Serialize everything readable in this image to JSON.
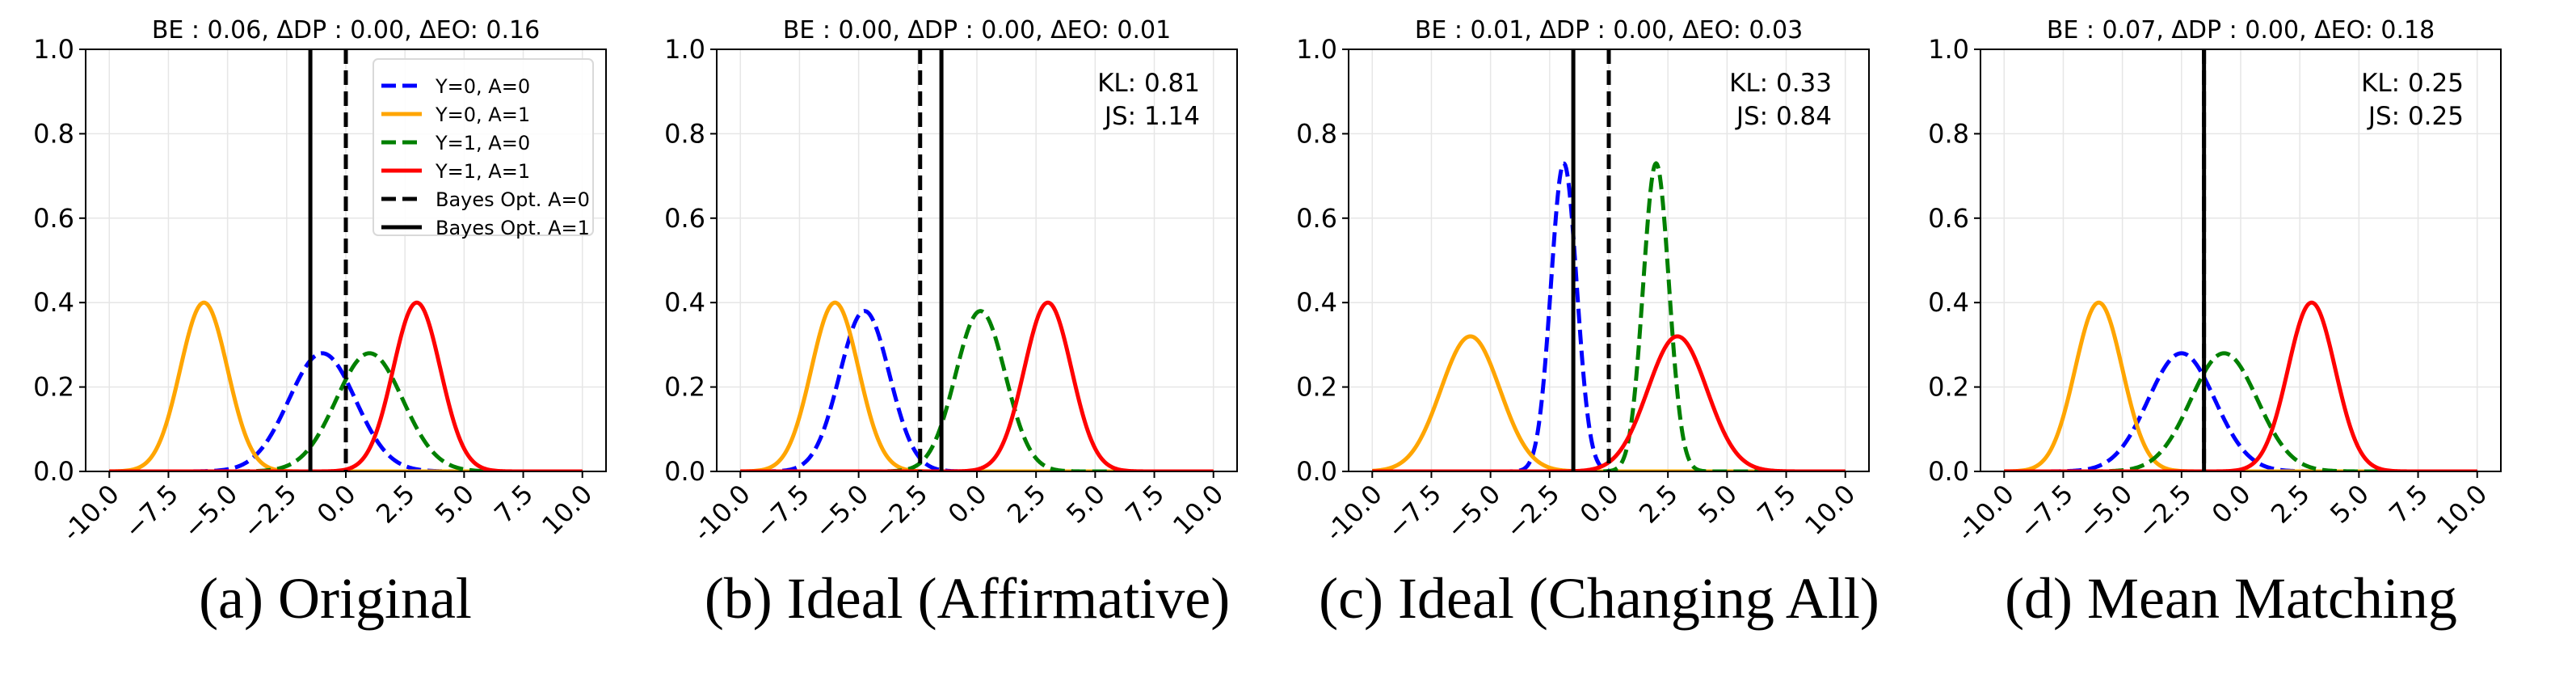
{
  "figure": {
    "colors": {
      "y0_a0": "#0000ff",
      "y0_a1": "#ffa500",
      "y1_a0": "#008000",
      "y1_a1": "#ff0000",
      "bayes": "#000000",
      "grid": "#e6e6e6"
    }
  },
  "chart_data": [
    {
      "type": "line",
      "panel": "a",
      "title": "BE : 0.06, ΔDP : 0.00, ΔEO: 0.16",
      "caption": "(a) Original",
      "xlabel": "",
      "ylabel": "",
      "xlim": [
        -11,
        11
      ],
      "ylim": [
        0,
        1.0
      ],
      "xticks": [
        -10.0,
        -7.5,
        -5.0,
        -2.5,
        0.0,
        2.5,
        5.0,
        7.5,
        10.0
      ],
      "xtick_labels": [
        "-10.0",
        "−7.5",
        "−5.0",
        "−2.5",
        "0.0",
        "2.5",
        "5.0",
        "7.5",
        "10.0"
      ],
      "yticks": [
        0.0,
        0.2,
        0.4,
        0.6,
        0.8,
        1.0
      ],
      "ytick_labels": [
        "0.0",
        "0.2",
        "0.4",
        "0.6",
        "0.8",
        "1.0"
      ],
      "grid": true,
      "legend": {
        "placement": "top-right",
        "entries": [
          {
            "label": "Y=0, A=0",
            "series": "y0_a0",
            "style": "dashed"
          },
          {
            "label": "Y=0, A=1",
            "series": "y0_a1",
            "style": "solid"
          },
          {
            "label": "Y=1, A=0",
            "series": "y1_a0",
            "style": "dashed"
          },
          {
            "label": "Y=1, A=1",
            "series": "y1_a1",
            "style": "solid"
          },
          {
            "label": "Bayes Opt. A=0",
            "series": "bayes_a0",
            "style": "dashed"
          },
          {
            "label": "Bayes Opt. A=1",
            "series": "bayes_a1",
            "style": "solid"
          }
        ]
      },
      "annotation": null,
      "series": [
        {
          "name": "Y=0, A=0",
          "key": "y0_a0",
          "kind": "gaussian",
          "mean": -1.0,
          "std": 1.41,
          "peak": 0.28,
          "style": "dashed"
        },
        {
          "name": "Y=0, A=1",
          "key": "y0_a1",
          "kind": "gaussian",
          "mean": -6.0,
          "std": 1.0,
          "peak": 0.4,
          "style": "solid"
        },
        {
          "name": "Y=1, A=0",
          "key": "y1_a0",
          "kind": "gaussian",
          "mean": 1.0,
          "std": 1.41,
          "peak": 0.28,
          "style": "dashed"
        },
        {
          "name": "Y=1, A=1",
          "key": "y1_a1",
          "kind": "gaussian",
          "mean": 3.0,
          "std": 1.0,
          "peak": 0.4,
          "style": "solid"
        }
      ],
      "vlines": [
        {
          "name": "Bayes Opt. A=0",
          "x": 0.0,
          "style": "dashed"
        },
        {
          "name": "Bayes Opt. A=1",
          "x": -1.5,
          "style": "solid"
        }
      ]
    },
    {
      "type": "line",
      "panel": "b",
      "title": "BE : 0.00, ΔDP : 0.00, ΔEO: 0.01",
      "caption": "(b) Ideal (Affirmative)",
      "xlabel": "",
      "ylabel": "",
      "xlim": [
        -11,
        11
      ],
      "ylim": [
        0,
        1.0
      ],
      "xticks": [
        -10.0,
        -7.5,
        -5.0,
        -2.5,
        0.0,
        2.5,
        5.0,
        7.5,
        10.0
      ],
      "xtick_labels": [
        "-10.0",
        "−7.5",
        "−5.0",
        "−2.5",
        "0.0",
        "2.5",
        "5.0",
        "7.5",
        "10.0"
      ],
      "yticks": [
        0.0,
        0.2,
        0.4,
        0.6,
        0.8,
        1.0
      ],
      "ytick_labels": [
        "0.0",
        "0.2",
        "0.4",
        "0.6",
        "0.8",
        "1.0"
      ],
      "grid": true,
      "legend": null,
      "annotation": {
        "placement": "top-right",
        "lines": [
          "KL: 0.81",
          "JS: 1.14"
        ]
      },
      "series": [
        {
          "name": "Y=0, A=0",
          "key": "y0_a0",
          "kind": "gaussian",
          "mean": -4.75,
          "std": 1.05,
          "peak": 0.38,
          "style": "dashed"
        },
        {
          "name": "Y=0, A=1",
          "key": "y0_a1",
          "kind": "gaussian",
          "mean": -6.0,
          "std": 1.0,
          "peak": 0.4,
          "style": "solid"
        },
        {
          "name": "Y=1, A=0",
          "key": "y1_a0",
          "kind": "gaussian",
          "mean": 0.15,
          "std": 1.05,
          "peak": 0.38,
          "style": "dashed"
        },
        {
          "name": "Y=1, A=1",
          "key": "y1_a1",
          "kind": "gaussian",
          "mean": 3.0,
          "std": 1.0,
          "peak": 0.4,
          "style": "solid"
        }
      ],
      "vlines": [
        {
          "name": "Bayes Opt. A=0",
          "x": -2.4,
          "style": "dashed"
        },
        {
          "name": "Bayes Opt. A=1",
          "x": -1.5,
          "style": "solid"
        }
      ]
    },
    {
      "type": "line",
      "panel": "c",
      "title": "BE : 0.01, ΔDP : 0.00, ΔEO: 0.03",
      "caption": "(c) Ideal (Changing All)",
      "xlabel": "",
      "ylabel": "",
      "xlim": [
        -11,
        11
      ],
      "ylim": [
        0,
        1.0
      ],
      "xticks": [
        -10.0,
        -7.5,
        -5.0,
        -2.5,
        0.0,
        2.5,
        5.0,
        7.5,
        10.0
      ],
      "xtick_labels": [
        "-10.0",
        "−7.5",
        "−5.0",
        "−2.5",
        "0.0",
        "2.5",
        "5.0",
        "7.5",
        "10.0"
      ],
      "yticks": [
        0.0,
        0.2,
        0.4,
        0.6,
        0.8,
        1.0
      ],
      "ytick_labels": [
        "0.0",
        "0.2",
        "0.4",
        "0.6",
        "0.8",
        "1.0"
      ],
      "grid": true,
      "legend": null,
      "annotation": {
        "placement": "top-right",
        "lines": [
          "KL: 0.33",
          "JS: 0.84"
        ]
      },
      "series": [
        {
          "name": "Y=0, A=0",
          "key": "y0_a0",
          "kind": "gaussian",
          "mean": -1.9,
          "std": 0.545,
          "peak": 0.73,
          "style": "dashed"
        },
        {
          "name": "Y=0, A=1",
          "key": "y0_a1",
          "kind": "gaussian",
          "mean": -5.85,
          "std": 1.25,
          "peak": 0.32,
          "style": "solid"
        },
        {
          "name": "Y=1, A=0",
          "key": "y1_a0",
          "kind": "gaussian",
          "mean": 2.0,
          "std": 0.545,
          "peak": 0.73,
          "style": "dashed"
        },
        {
          "name": "Y=1, A=1",
          "key": "y1_a1",
          "kind": "gaussian",
          "mean": 2.9,
          "std": 1.25,
          "peak": 0.32,
          "style": "solid"
        }
      ],
      "vlines": [
        {
          "name": "Bayes Opt. A=0",
          "x": 0.0,
          "style": "dashed"
        },
        {
          "name": "Bayes Opt. A=1",
          "x": -1.5,
          "style": "solid"
        }
      ]
    },
    {
      "type": "line",
      "panel": "d",
      "title": "BE : 0.07, ΔDP : 0.00, ΔEO: 0.18",
      "caption": "(d) Mean Matching",
      "xlabel": "",
      "ylabel": "",
      "xlim": [
        -11,
        11
      ],
      "ylim": [
        0,
        1.0
      ],
      "xticks": [
        -10.0,
        -7.5,
        -5.0,
        -2.5,
        0.0,
        2.5,
        5.0,
        7.5,
        10.0
      ],
      "xtick_labels": [
        "-10.0",
        "−7.5",
        "−5.0",
        "−2.5",
        "0.0",
        "2.5",
        "5.0",
        "7.5",
        "10.0"
      ],
      "yticks": [
        0.0,
        0.2,
        0.4,
        0.6,
        0.8,
        1.0
      ],
      "ytick_labels": [
        "0.0",
        "0.2",
        "0.4",
        "0.6",
        "0.8",
        "1.0"
      ],
      "grid": true,
      "legend": null,
      "annotation": {
        "placement": "top-right",
        "lines": [
          "KL: 0.25",
          "JS: 0.25"
        ]
      },
      "series": [
        {
          "name": "Y=0, A=0",
          "key": "y0_a0",
          "kind": "gaussian",
          "mean": -2.5,
          "std": 1.41,
          "peak": 0.28,
          "style": "dashed"
        },
        {
          "name": "Y=0, A=1",
          "key": "y0_a1",
          "kind": "gaussian",
          "mean": -6.0,
          "std": 1.0,
          "peak": 0.4,
          "style": "solid"
        },
        {
          "name": "Y=1, A=0",
          "key": "y1_a0",
          "kind": "gaussian",
          "mean": -0.7,
          "std": 1.41,
          "peak": 0.28,
          "style": "dashed"
        },
        {
          "name": "Y=1, A=1",
          "key": "y1_a1",
          "kind": "gaussian",
          "mean": 3.0,
          "std": 1.0,
          "peak": 0.4,
          "style": "solid"
        }
      ],
      "vlines": [
        {
          "name": "Bayes Opt. A=0",
          "x": -1.55,
          "style": "dashed"
        },
        {
          "name": "Bayes Opt. A=1",
          "x": -1.55,
          "style": "solid"
        }
      ]
    }
  ]
}
